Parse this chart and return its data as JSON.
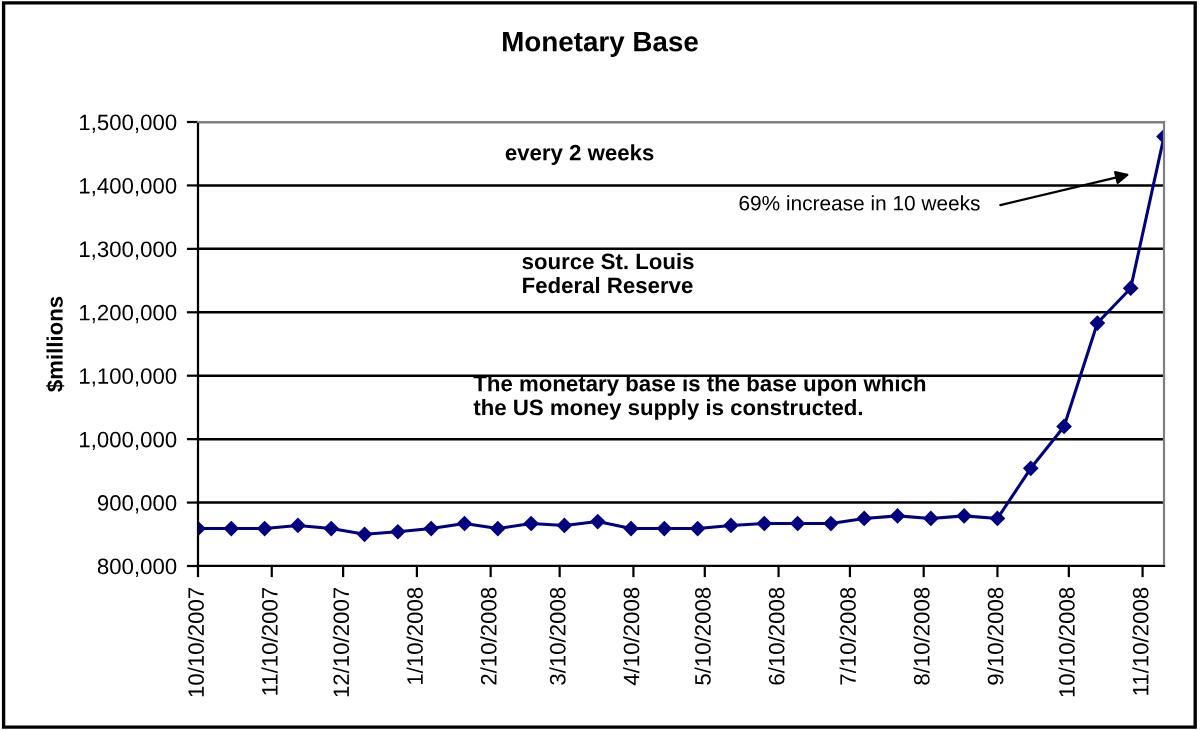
{
  "chart_data": {
    "type": "line",
    "title": "Monetary Base",
    "ylabel": "$millions",
    "x": [
      "2007-10-10",
      "2007-10-24",
      "2007-11-07",
      "2007-11-21",
      "2007-12-05",
      "2007-12-19",
      "2008-01-02",
      "2008-01-16",
      "2008-01-30",
      "2008-02-13",
      "2008-02-27",
      "2008-03-12",
      "2008-03-26",
      "2008-04-09",
      "2008-04-23",
      "2008-05-07",
      "2008-05-21",
      "2008-06-04",
      "2008-06-18",
      "2008-07-02",
      "2008-07-16",
      "2008-07-30",
      "2008-08-13",
      "2008-08-27",
      "2008-09-10",
      "2008-09-24",
      "2008-10-08",
      "2008-10-22",
      "2008-11-05",
      "2008-11-19"
    ],
    "series": [
      {
        "color": "#000080",
        "values": [
          859000,
          859000,
          859000,
          864000,
          859000,
          850000,
          854000,
          859000,
          867000,
          859000,
          867000,
          864000,
          870000,
          859000,
          859000,
          859000,
          864000,
          867000,
          867000,
          867000,
          875000,
          879000,
          875000,
          879000,
          875000,
          954000,
          1020000,
          1183000,
          1238000,
          1477000
        ]
      }
    ],
    "marker": "diamond",
    "line_style": "solid",
    "grid": "y",
    "legend": false,
    "xlim": [
      "2007-10-10",
      "2008-11-19"
    ],
    "xticks": [
      {
        "value": "2007-10-10",
        "label": "10/10/2007"
      },
      {
        "value": "2007-11-10",
        "label": "11/10/2007"
      },
      {
        "value": "2007-12-10",
        "label": "12/10/2007"
      },
      {
        "value": "2008-01-10",
        "label": "1/10/2008"
      },
      {
        "value": "2008-02-10",
        "label": "2/10/2008"
      },
      {
        "value": "2008-03-10",
        "label": "3/10/2008"
      },
      {
        "value": "2008-04-10",
        "label": "4/10/2008"
      },
      {
        "value": "2008-05-10",
        "label": "5/10/2008"
      },
      {
        "value": "2008-06-10",
        "label": "6/10/2008"
      },
      {
        "value": "2008-07-10",
        "label": "7/10/2008"
      },
      {
        "value": "2008-08-10",
        "label": "8/10/2008"
      },
      {
        "value": "2008-09-10",
        "label": "9/10/2008"
      },
      {
        "value": "2008-10-10",
        "label": "10/10/2008"
      },
      {
        "value": "2008-11-10",
        "label": "11/10/2008"
      }
    ],
    "ylim": [
      800000,
      1500000
    ],
    "yticks": [
      {
        "value": 800000,
        "label": "800,000"
      },
      {
        "value": 900000,
        "label": "900,000"
      },
      {
        "value": 1000000,
        "label": "1,000,000"
      },
      {
        "value": 1100000,
        "label": "1,100,000"
      },
      {
        "value": 1200000,
        "label": "1,200,000"
      },
      {
        "value": 1300000,
        "label": "1,300,000"
      },
      {
        "value": 1400000,
        "label": "1,400,000"
      },
      {
        "value": 1500000,
        "label": "1,500,000"
      }
    ],
    "annotations": [
      "every 2 weeks",
      "source St. Louis\nFederal Reserve",
      "The monetary base is the base upon which\nthe US money supply is constructed.",
      "69% increase in 10 weeks"
    ]
  }
}
